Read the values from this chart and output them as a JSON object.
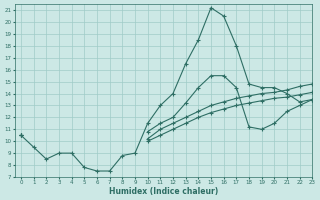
{
  "xlabel": "Humidex (Indice chaleur)",
  "xlim": [
    -0.5,
    23
  ],
  "ylim": [
    7,
    21.5
  ],
  "xticks": [
    0,
    1,
    2,
    3,
    4,
    5,
    6,
    7,
    8,
    9,
    10,
    11,
    12,
    13,
    14,
    15,
    16,
    17,
    18,
    19,
    20,
    21,
    22,
    23
  ],
  "yticks": [
    7,
    8,
    9,
    10,
    11,
    12,
    13,
    14,
    15,
    16,
    17,
    18,
    19,
    20,
    21
  ],
  "bg_color": "#cce8e5",
  "grid_color": "#a0ccc8",
  "line_color": "#2e6e64",
  "line1_y": [
    10.5,
    9.5,
    8.5,
    9.0,
    9.0,
    7.8,
    7.5,
    7.5,
    8.8,
    9.0,
    11.5,
    13.0,
    14.0,
    16.5,
    18.5,
    21.2,
    20.5,
    18.0,
    14.8,
    14.5,
    14.5,
    14.0,
    13.3,
    13.5
  ],
  "line2_y": [
    10.5,
    null,
    null,
    null,
    null,
    null,
    null,
    null,
    null,
    null,
    10.8,
    11.5,
    12.0,
    13.2,
    14.5,
    15.5,
    15.5,
    14.5,
    11.2,
    11.0,
    11.5,
    12.5,
    13.0,
    13.5
  ],
  "line3_y": [
    10.5,
    null,
    null,
    null,
    null,
    null,
    null,
    null,
    null,
    null,
    10.2,
    11.0,
    11.5,
    12.0,
    12.5,
    13.0,
    13.3,
    13.6,
    13.8,
    14.0,
    14.1,
    14.3,
    14.6,
    14.8
  ],
  "line4_y": [
    10.5,
    null,
    null,
    null,
    null,
    null,
    null,
    null,
    null,
    null,
    10.0,
    10.5,
    11.0,
    11.5,
    12.0,
    12.4,
    12.7,
    13.0,
    13.2,
    13.4,
    13.6,
    13.7,
    13.9,
    14.1
  ]
}
